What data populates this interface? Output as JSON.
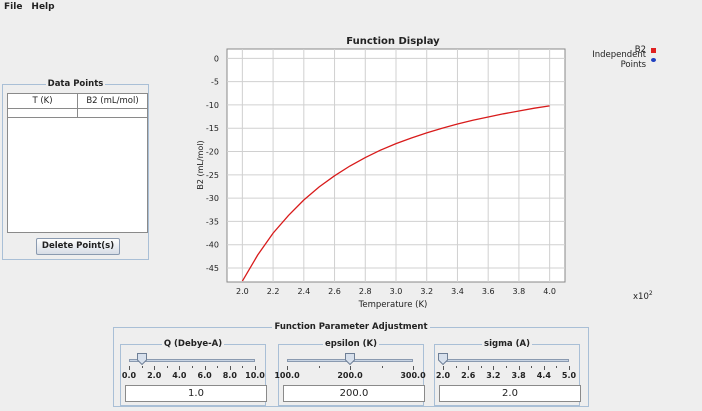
{
  "menu": {
    "file": "File",
    "help": "Help"
  },
  "data_points": {
    "title": "Data Points",
    "col_t": "T (K)",
    "col_b2": "B2 (mL/mol)",
    "delete_label": "Delete Point(s)"
  },
  "chart": {
    "x_scale_base": "x10",
    "x_scale_exp": "2"
  },
  "chart_data": {
    "type": "line",
    "title": "Function Display",
    "xlabel": "Temperature (K)",
    "ylabel": "B2 (mL/mol)",
    "xlim": [
      1.9,
      4.1
    ],
    "ylim": [
      -48,
      2
    ],
    "x_ticks": [
      "2.0",
      "2.2",
      "2.4",
      "2.6",
      "2.8",
      "3.0",
      "3.2",
      "3.4",
      "3.6",
      "3.8",
      "4.0"
    ],
    "y_ticks": [
      "0",
      "-5",
      "-10",
      "-15",
      "-20",
      "-25",
      "-30",
      "-35",
      "-40",
      "-45"
    ],
    "grid": true,
    "legend_position": "top-right",
    "legend": [
      {
        "name": "B2",
        "color": "#e02020"
      },
      {
        "name": "Independent Points",
        "color": "#2040c0"
      }
    ],
    "series": [
      {
        "name": "B2",
        "color": "#d81b1b",
        "x": [
          2.0,
          2.1,
          2.2,
          2.3,
          2.4,
          2.5,
          2.6,
          2.7,
          2.8,
          2.9,
          3.0,
          3.1,
          3.2,
          3.3,
          3.4,
          3.5,
          3.6,
          3.7,
          3.8,
          3.9,
          4.0
        ],
        "y": [
          -47.8,
          -42.2,
          -37.5,
          -33.7,
          -30.4,
          -27.6,
          -25.2,
          -23.1,
          -21.3,
          -19.7,
          -18.3,
          -17.1,
          -16.0,
          -15.0,
          -14.1,
          -13.3,
          -12.6,
          -11.9,
          -11.3,
          -10.7,
          -10.2
        ]
      }
    ]
  },
  "params": {
    "title": "Function Parameter Adjustment",
    "groups": [
      {
        "label": "Q (Debye-A)",
        "value": "1.0",
        "level": 0.1,
        "ticks": [
          "0.0",
          "2.0",
          "4.0",
          "6.0",
          "8.0",
          "10.0"
        ]
      },
      {
        "label": "epsilon (K)",
        "value": "200.0",
        "level": 0.5,
        "ticks": [
          "100.0",
          "200.0",
          "300.0"
        ]
      },
      {
        "label": "sigma (A)",
        "value": "2.0",
        "level": 0.0,
        "ticks": [
          "2.0",
          "2.6",
          "3.2",
          "3.8",
          "4.4",
          "5.0"
        ]
      }
    ]
  }
}
